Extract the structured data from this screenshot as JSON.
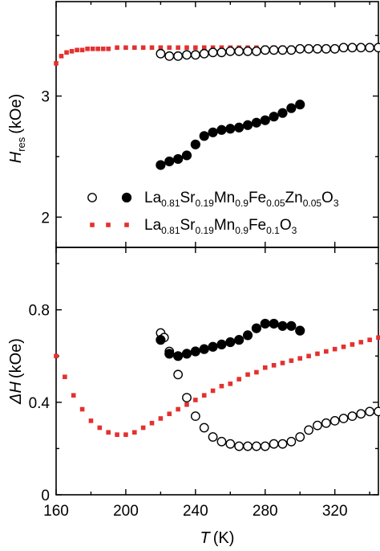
{
  "chart_data": [
    {
      "type": "scatter",
      "panel": "top",
      "ylabel_main": "H",
      "ylabel_sub": "res",
      "ylabel_unit": "(kOe)",
      "ylim": [
        1.75,
        3.78
      ],
      "yticks": [
        2,
        3
      ],
      "yticklabels": [
        "2",
        "3"
      ],
      "legend_position": "bottom-right",
      "series": [
        {
          "id": "zn_open",
          "marker": "open-circle",
          "color": "#000000",
          "x": [
            220,
            225,
            230,
            235,
            240,
            245,
            250,
            255,
            260,
            265,
            270,
            275,
            280,
            285,
            290,
            295,
            300,
            305,
            310,
            315,
            320,
            325,
            330,
            335,
            340,
            345
          ],
          "y": [
            3.35,
            3.33,
            3.33,
            3.34,
            3.34,
            3.35,
            3.36,
            3.36,
            3.37,
            3.37,
            3.37,
            3.37,
            3.38,
            3.38,
            3.38,
            3.38,
            3.39,
            3.39,
            3.39,
            3.39,
            3.39,
            3.4,
            3.4,
            3.4,
            3.4,
            3.4
          ]
        },
        {
          "id": "zn_filled",
          "marker": "filled-circle",
          "color": "#000000",
          "x": [
            220,
            225,
            230,
            235,
            240,
            245,
            250,
            255,
            260,
            265,
            270,
            275,
            280,
            285,
            290,
            295,
            300
          ],
          "y": [
            2.43,
            2.46,
            2.48,
            2.51,
            2.6,
            2.67,
            2.7,
            2.72,
            2.73,
            2.74,
            2.76,
            2.78,
            2.8,
            2.83,
            2.86,
            2.9,
            2.93
          ]
        },
        {
          "id": "fe_red",
          "marker": "square",
          "color": "#e3312f",
          "x": [
            160,
            163,
            166,
            169,
            172,
            175,
            178,
            181,
            184,
            187,
            190,
            195,
            200,
            205,
            210,
            215,
            220,
            225,
            230,
            235,
            240,
            245,
            250,
            255,
            260,
            265,
            270,
            275,
            280,
            285,
            290,
            295,
            300,
            305,
            310,
            315,
            320,
            325,
            330,
            335,
            340,
            345
          ],
          "y": [
            3.27,
            3.33,
            3.36,
            3.37,
            3.38,
            3.38,
            3.39,
            3.39,
            3.39,
            3.39,
            3.39,
            3.4,
            3.4,
            3.4,
            3.4,
            3.4,
            3.4,
            3.4,
            3.4,
            3.4,
            3.4,
            3.4,
            3.4,
            3.4,
            3.4,
            3.4,
            3.4,
            3.4,
            3.4,
            3.4,
            3.4,
            3.4,
            3.4,
            3.4,
            3.4,
            3.4,
            3.4,
            3.4,
            3.4,
            3.4,
            3.4,
            3.4
          ]
        }
      ],
      "legend": [
        {
          "markers": [
            "open-circle",
            "filled-circle"
          ],
          "label_parts": [
            {
              "t": "La",
              "s": false
            },
            {
              "t": "0.81",
              "s": true
            },
            {
              "t": "Sr",
              "s": false
            },
            {
              "t": "0.19",
              "s": true
            },
            {
              "t": "Mn",
              "s": false
            },
            {
              "t": "0.9",
              "s": true
            },
            {
              "t": "Fe",
              "s": false
            },
            {
              "t": "0.05",
              "s": true
            },
            {
              "t": "Zn",
              "s": false
            },
            {
              "t": "0.05",
              "s": true
            },
            {
              "t": "O",
              "s": false
            },
            {
              "t": "3",
              "s": true
            }
          ]
        },
        {
          "markers": [
            "square"
          ],
          "label_parts": [
            {
              "t": "La",
              "s": false
            },
            {
              "t": "0.81",
              "s": true
            },
            {
              "t": "Sr",
              "s": false
            },
            {
              "t": "0.19",
              "s": true
            },
            {
              "t": "Mn",
              "s": false
            },
            {
              "t": "0.9",
              "s": true
            },
            {
              "t": "Fe",
              "s": false
            },
            {
              "t": "0.1",
              "s": true
            },
            {
              "t": "O",
              "s": false
            },
            {
              "t": "3",
              "s": true
            }
          ]
        }
      ]
    },
    {
      "type": "scatter",
      "panel": "bottom",
      "xlabel_main": "T",
      "xlabel_unit": "(K)",
      "ylabel_main": "ΔH",
      "ylabel_unit": "(kOe)",
      "xlim": [
        160,
        345
      ],
      "xticks": [
        160,
        200,
        240,
        280,
        320
      ],
      "xticklabels": [
        "160",
        "200",
        "240",
        "280",
        "320"
      ],
      "ylim": [
        0,
        1.07
      ],
      "yticks": [
        0,
        0.4,
        0.8
      ],
      "yticklabels": [
        "0",
        "0.4",
        "0.8"
      ],
      "series": [
        {
          "id": "zn_open",
          "marker": "open-circle",
          "color": "#000000",
          "x": [
            220,
            222,
            225,
            230,
            235,
            240,
            245,
            250,
            255,
            260,
            265,
            270,
            275,
            280,
            285,
            290,
            295,
            300,
            305,
            310,
            315,
            320,
            325,
            330,
            335,
            340,
            345
          ],
          "y": [
            0.7,
            0.68,
            0.62,
            0.52,
            0.42,
            0.34,
            0.29,
            0.25,
            0.23,
            0.22,
            0.21,
            0.21,
            0.21,
            0.21,
            0.22,
            0.22,
            0.23,
            0.25,
            0.28,
            0.3,
            0.31,
            0.32,
            0.33,
            0.34,
            0.35,
            0.36,
            0.36
          ]
        },
        {
          "id": "zn_filled",
          "marker": "filled-circle",
          "color": "#000000",
          "x": [
            220,
            225,
            230,
            235,
            240,
            245,
            250,
            255,
            260,
            265,
            270,
            275,
            280,
            285,
            290,
            295,
            300
          ],
          "y": [
            0.67,
            0.61,
            0.6,
            0.61,
            0.62,
            0.63,
            0.64,
            0.65,
            0.66,
            0.67,
            0.69,
            0.72,
            0.74,
            0.74,
            0.73,
            0.73,
            0.71
          ]
        },
        {
          "id": "fe_red",
          "marker": "square",
          "color": "#e3312f",
          "x": [
            160,
            165,
            170,
            175,
            180,
            185,
            190,
            195,
            200,
            205,
            210,
            215,
            220,
            225,
            230,
            235,
            240,
            245,
            250,
            255,
            260,
            265,
            270,
            275,
            280,
            285,
            290,
            295,
            300,
            305,
            310,
            315,
            320,
            325,
            330,
            335,
            340,
            345
          ],
          "y": [
            0.6,
            0.51,
            0.43,
            0.37,
            0.32,
            0.29,
            0.27,
            0.26,
            0.26,
            0.27,
            0.29,
            0.31,
            0.33,
            0.35,
            0.37,
            0.39,
            0.41,
            0.43,
            0.45,
            0.47,
            0.48,
            0.5,
            0.52,
            0.53,
            0.55,
            0.56,
            0.57,
            0.58,
            0.59,
            0.6,
            0.61,
            0.62,
            0.63,
            0.64,
            0.65,
            0.66,
            0.67,
            0.68
          ]
        }
      ]
    }
  ]
}
